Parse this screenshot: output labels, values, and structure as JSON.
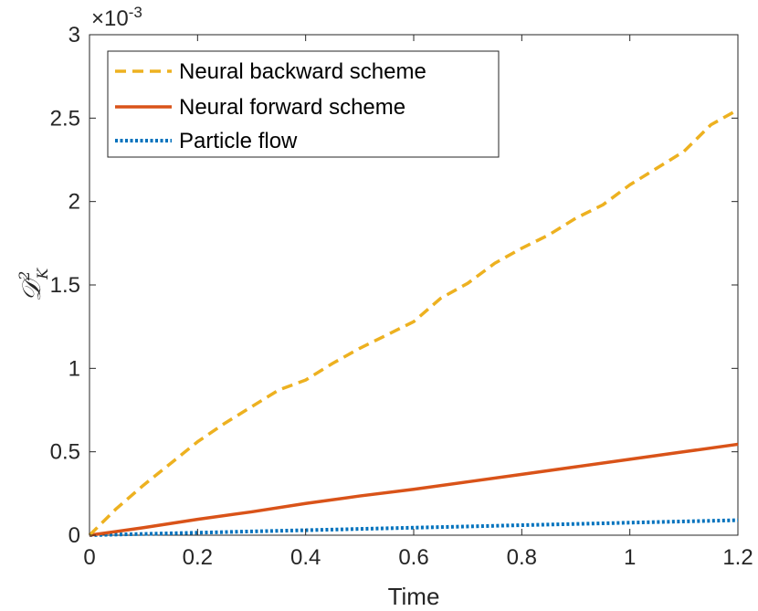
{
  "chart_data": {
    "type": "line",
    "xlabel": "Time",
    "ylabel": {
      "base": "𝒟",
      "sup": "2",
      "sub": "K"
    },
    "y_exponent": {
      "base": "×10",
      "exp": "-3"
    },
    "xlim": [
      0,
      1.2
    ],
    "ylim": [
      0,
      3
    ],
    "xticks": [
      0,
      0.2,
      0.4,
      0.6,
      0.8,
      1,
      1.2
    ],
    "xtick_labels": [
      "0",
      "0.2",
      "0.4",
      "0.6",
      "0.8",
      "1",
      "1.2"
    ],
    "yticks": [
      0,
      0.5,
      1,
      1.5,
      2,
      2.5,
      3
    ],
    "ytick_labels": [
      "0",
      "0.5",
      "1",
      "1.5",
      "2",
      "2.5",
      "3"
    ],
    "legend_position": "top-left",
    "grid": false,
    "series": [
      {
        "name": "Neural backward scheme",
        "color": "#EDB120",
        "style": "dashed",
        "x": [
          0,
          0.05,
          0.1,
          0.15,
          0.2,
          0.25,
          0.3,
          0.35,
          0.4,
          0.45,
          0.5,
          0.55,
          0.6,
          0.65,
          0.7,
          0.75,
          0.8,
          0.85,
          0.9,
          0.95,
          1.0,
          1.05,
          1.1,
          1.15,
          1.2
        ],
        "values": [
          0,
          0.16,
          0.3,
          0.43,
          0.56,
          0.67,
          0.77,
          0.87,
          0.93,
          1.03,
          1.12,
          1.2,
          1.28,
          1.42,
          1.51,
          1.63,
          1.72,
          1.8,
          1.9,
          1.98,
          2.1,
          2.2,
          2.3,
          2.46,
          2.55
        ]
      },
      {
        "name": "Neural forward scheme",
        "color": "#D95319",
        "style": "solid",
        "x": [
          0,
          0.1,
          0.2,
          0.3,
          0.4,
          0.5,
          0.6,
          0.7,
          0.8,
          0.9,
          1.0,
          1.1,
          1.2
        ],
        "values": [
          0,
          0.045,
          0.095,
          0.14,
          0.19,
          0.235,
          0.275,
          0.32,
          0.365,
          0.41,
          0.455,
          0.5,
          0.545
        ]
      },
      {
        "name": "Particle flow",
        "color": "#0072BD",
        "style": "dotted",
        "x": [
          0,
          0.2,
          0.4,
          0.6,
          0.8,
          1.0,
          1.2
        ],
        "values": [
          0,
          0.015,
          0.03,
          0.045,
          0.06,
          0.075,
          0.09
        ]
      }
    ]
  }
}
